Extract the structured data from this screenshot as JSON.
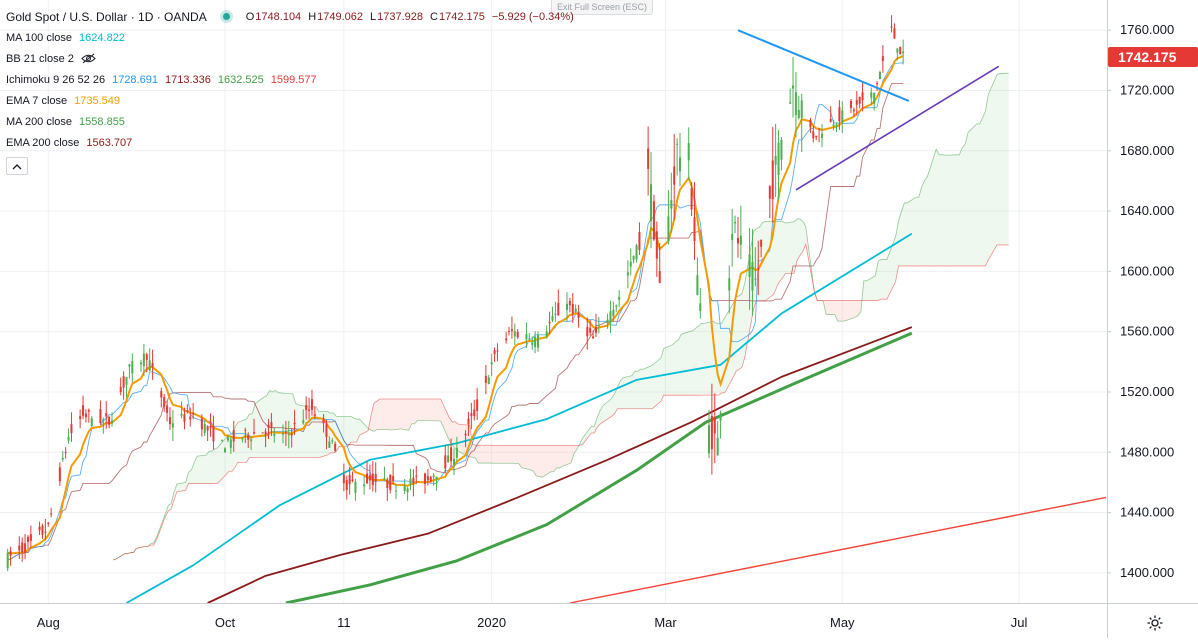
{
  "header": {
    "symbol_title": "Gold Spot / U.S. Dollar · 1D · OANDA",
    "ohlc": [
      {
        "key": "O",
        "value": "1748.104"
      },
      {
        "key": "H",
        "value": "1749.062"
      },
      {
        "key": "L",
        "value": "1737.928"
      },
      {
        "key": "C",
        "value": "1742.175"
      },
      {
        "key": "",
        "value": "−5.929 (−0.34%)"
      }
    ],
    "exit_fullscreen": "Exit Full Screen (ESC)"
  },
  "indicators": [
    {
      "label": "MA 100 close",
      "values": [
        {
          "v": "1624.822",
          "color": "#00bcd4"
        }
      ]
    },
    {
      "label": "BB 21 close 2",
      "values": [],
      "hidden": true
    },
    {
      "label": "Ichimoku 9 26 52 26",
      "values": [
        {
          "v": "1728.691",
          "color": "#2196f3"
        },
        {
          "v": "1713.336",
          "color": "#8b1a1a"
        },
        {
          "v": "1632.525",
          "color": "#43a047"
        },
        {
          "v": "1599.577",
          "color": "#e53935"
        }
      ]
    },
    {
      "label": "EMA 7 close",
      "values": [
        {
          "v": "1735.549",
          "color": "#f59b00"
        }
      ]
    },
    {
      "label": "MA 200 close",
      "values": [
        {
          "v": "1558.855",
          "color": "#43a047"
        }
      ]
    },
    {
      "label": "EMA 200 close",
      "values": [
        {
          "v": "1563.707",
          "color": "#8b1a1a"
        }
      ]
    }
  ],
  "colors": {
    "up": "#4caf50",
    "down": "#e53935",
    "ema7": "#f59b00",
    "ma100": "#00bcd4",
    "ma200": "#43a047",
    "ema200": "#8b1a1a",
    "tenkan": "#2196f3",
    "kijun": "#8b1a1a",
    "span_a": "#43a047",
    "span_b": "#e53935",
    "trend_blue": "#2196f3",
    "trend_purple": "#673ab7",
    "trend_red": "#f44336",
    "price_tag": "#e53935"
  },
  "chart_data": {
    "type": "candlestick",
    "title": "Gold Spot / U.S. Dollar · 1D · OANDA",
    "ylim": [
      1380,
      1780
    ],
    "y_ticks": [
      "1400.000",
      "1440.000",
      "1480.000",
      "1520.000",
      "1560.000",
      "1600.000",
      "1640.000",
      "1680.000",
      "1720.000",
      "1760.000"
    ],
    "x_ticks": [
      {
        "label": "Aug",
        "date": "2019-08-01"
      },
      {
        "label": "Oct",
        "date": "2019-10-01"
      },
      {
        "label": "11",
        "date": "2019-11-11"
      },
      {
        "label": "2020",
        "date": "2020-01-01"
      },
      {
        "label": "Mar",
        "date": "2020-03-01"
      },
      {
        "label": "May",
        "date": "2020-05-01"
      },
      {
        "label": "Jul",
        "date": "2020-07-01"
      }
    ],
    "last_price": "1742.175",
    "grid": true,
    "close_series": {
      "dates": [
        "2019-07-18",
        "2019-07-25",
        "2019-08-01",
        "2019-08-08",
        "2019-08-13",
        "2019-08-22",
        "2019-08-29",
        "2019-09-04",
        "2019-09-12",
        "2019-09-20",
        "2019-09-30",
        "2019-10-07",
        "2019-10-15",
        "2019-10-22",
        "2019-10-31",
        "2019-11-06",
        "2019-11-12",
        "2019-11-20",
        "2019-11-28",
        "2019-12-10",
        "2019-12-20",
        "2019-12-27",
        "2020-01-03",
        "2020-01-08",
        "2020-01-17",
        "2020-01-27",
        "2020-02-05",
        "2020-02-14",
        "2020-02-21",
        "2020-02-24",
        "2020-02-28",
        "2020-03-05",
        "2020-03-09",
        "2020-03-16",
        "2020-03-19",
        "2020-03-24",
        "2020-04-01",
        "2020-04-09",
        "2020-04-14",
        "2020-04-21",
        "2020-04-28",
        "2020-05-05",
        "2020-05-12",
        "2020-05-18",
        "2020-05-22"
      ],
      "close": [
        1410,
        1418,
        1430,
        1490,
        1505,
        1500,
        1535,
        1545,
        1500,
        1505,
        1485,
        1490,
        1495,
        1490,
        1510,
        1490,
        1458,
        1462,
        1458,
        1462,
        1480,
        1510,
        1548,
        1560,
        1555,
        1580,
        1555,
        1582,
        1620,
        1672,
        1588,
        1680,
        1675,
        1495,
        1486,
        1630,
        1592,
        1680,
        1725,
        1690,
        1700,
        1708,
        1718,
        1760,
        1742
      ]
    },
    "overlays": [
      {
        "name": "EMA 7 close",
        "value": "1735.549"
      },
      {
        "name": "MA 100 close",
        "value": "1624.822"
      },
      {
        "name": "MA 200 close",
        "value": "1558.855"
      },
      {
        "name": "EMA 200 close",
        "value": "1563.707"
      }
    ]
  }
}
